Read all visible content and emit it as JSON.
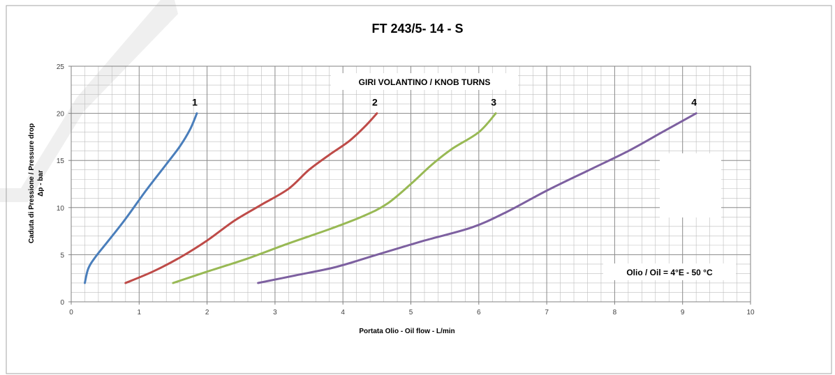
{
  "chart_data": {
    "type": "line",
    "title": "FT 243/5- 14 - S",
    "xlabel": "Portata Olio - Oil flow -  L/min",
    "ylabel_line1": "Caduta di Pressione / Pressure drop",
    "ylabel_line2": "Δp - bar",
    "xlim": [
      0,
      10
    ],
    "ylim": [
      0,
      25
    ],
    "x_ticks": [
      0,
      1,
      2,
      3,
      4,
      5,
      6,
      7,
      8,
      9,
      10
    ],
    "y_ticks": [
      0,
      5,
      10,
      15,
      20,
      25
    ],
    "grid": true,
    "annotation_top": "GIRI VOLANTINO / KNOB TURNS",
    "annotation_oil": "Olio / Oil = 4°E - 50 °C",
    "series": [
      {
        "name": "1",
        "color": "#4A7EBB",
        "points": [
          [
            0.2,
            2
          ],
          [
            0.25,
            3.5
          ],
          [
            0.35,
            4.7
          ],
          [
            0.55,
            6.5
          ],
          [
            0.8,
            8.8
          ],
          [
            1.1,
            11.8
          ],
          [
            1.4,
            14.6
          ],
          [
            1.6,
            16.5
          ],
          [
            1.75,
            18.3
          ],
          [
            1.85,
            20
          ]
        ]
      },
      {
        "name": "2",
        "color": "#BE4B48",
        "points": [
          [
            0.8,
            2
          ],
          [
            1.2,
            3.2
          ],
          [
            1.6,
            4.7
          ],
          [
            2.0,
            6.5
          ],
          [
            2.4,
            8.6
          ],
          [
            2.8,
            10.3
          ],
          [
            3.2,
            12
          ],
          [
            3.5,
            14
          ],
          [
            3.8,
            15.6
          ],
          [
            4.1,
            17.1
          ],
          [
            4.35,
            18.8
          ],
          [
            4.5,
            20
          ]
        ]
      },
      {
        "name": "3",
        "color": "#98B954",
        "points": [
          [
            1.5,
            2
          ],
          [
            2.0,
            3.2
          ],
          [
            2.6,
            4.6
          ],
          [
            3.2,
            6.2
          ],
          [
            3.8,
            7.7
          ],
          [
            4.3,
            9.1
          ],
          [
            4.65,
            10.4
          ],
          [
            5.0,
            12.5
          ],
          [
            5.3,
            14.5
          ],
          [
            5.6,
            16.2
          ],
          [
            6.0,
            18.0
          ],
          [
            6.25,
            20
          ]
        ]
      },
      {
        "name": "4",
        "color": "#7D60A0",
        "points": [
          [
            2.75,
            2
          ],
          [
            3.3,
            2.8
          ],
          [
            3.9,
            3.7
          ],
          [
            4.5,
            5
          ],
          [
            5.2,
            6.5
          ],
          [
            5.9,
            7.9
          ],
          [
            6.4,
            9.5
          ],
          [
            7.0,
            11.8
          ],
          [
            7.6,
            13.9
          ],
          [
            8.2,
            16.0
          ],
          [
            8.7,
            18.0
          ],
          [
            9.2,
            20
          ]
        ]
      }
    ]
  }
}
